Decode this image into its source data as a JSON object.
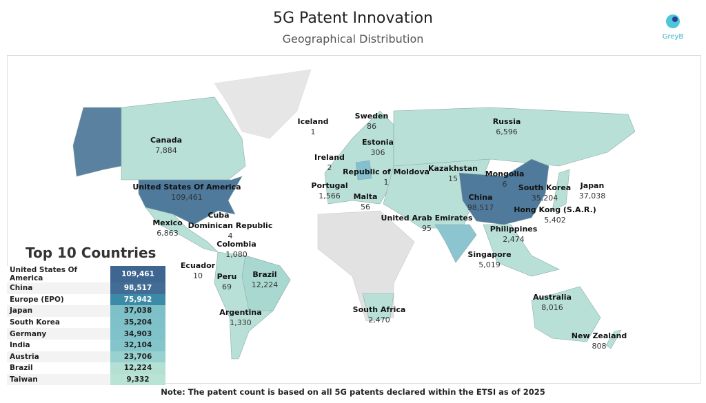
{
  "header": {
    "title": "5G Patent Innovation",
    "subtitle": "Geographical Distribution",
    "logo_text": "GreyB"
  },
  "colors": {
    "dark": "#4f7a9c",
    "mid": "#3a8fa8",
    "light": "#b9e0d6",
    "india": "#8cc5cf",
    "germany": "#84c0d0",
    "no_data": "#e2e2e2"
  },
  "map_labels": [
    {
      "name": "Iceland",
      "value": "1"
    },
    {
      "name": "Sweden",
      "value": "86"
    },
    {
      "name": "Estonia",
      "value": "306"
    },
    {
      "name": "Ireland",
      "value": "2"
    },
    {
      "name": "Republic of Moldova",
      "value": "1"
    },
    {
      "name": "Kazakhstan",
      "value": "15"
    },
    {
      "name": "Portugal",
      "value": "1,566"
    },
    {
      "name": "Malta",
      "value": "56"
    },
    {
      "name": "United Arab Emirates",
      "value": "95"
    },
    {
      "name": "Russia",
      "value": "6,596"
    },
    {
      "name": "Canada",
      "value": "7,884"
    },
    {
      "name": "United States Of America",
      "value": "109,461"
    },
    {
      "name": "Mexico",
      "value": "6,863"
    },
    {
      "name": "Cuba",
      "value": ""
    },
    {
      "name": "Dominican Republic",
      "value": "4"
    },
    {
      "name": "Colombia",
      "value": "1,080"
    },
    {
      "name": "Ecuador",
      "value": "10"
    },
    {
      "name": "Peru",
      "value": "69"
    },
    {
      "name": "Brazil",
      "value": "12,224"
    },
    {
      "name": "Argentina",
      "value": "1,330"
    },
    {
      "name": "South Africa",
      "value": "2,470"
    },
    {
      "name": "China",
      "value": "98,517"
    },
    {
      "name": "Mongolia",
      "value": "6"
    },
    {
      "name": "South Korea",
      "value": "35,204"
    },
    {
      "name": "Japan",
      "value": "37,038"
    },
    {
      "name": "Hong Kong (S.A.R.)",
      "value": "5,402"
    },
    {
      "name": "Philippines",
      "value": "2,474"
    },
    {
      "name": "Singapore",
      "value": "5,019"
    },
    {
      "name": "Australia",
      "value": "8,016"
    },
    {
      "name": "New Zealand",
      "value": "808"
    }
  ],
  "top10": {
    "title": "Top 10 Countries",
    "rows": [
      {
        "country": "United States Of America",
        "value": "109,461",
        "color": "#3f6690"
      },
      {
        "country": "China",
        "value": "98,517",
        "color": "#426c94"
      },
      {
        "country": "Europe (EPO)",
        "value": "75,942",
        "color": "#3a8aa8"
      },
      {
        "country": "Japan",
        "value": "37,038",
        "color": "#7dc0c8"
      },
      {
        "country": "South Korea",
        "value": "35,204",
        "color": "#7fc1c9"
      },
      {
        "country": "Germany",
        "value": "34,903",
        "color": "#80c2ca"
      },
      {
        "country": "India",
        "value": "32,104",
        "color": "#84c5cb"
      },
      {
        "country": "Austria",
        "value": "23,706",
        "color": "#98d1cf"
      },
      {
        "country": "Brazil",
        "value": "12,224",
        "color": "#b3e0d3"
      },
      {
        "country": "Taiwan",
        "value": "9,332",
        "color": "#b9e4d5"
      }
    ]
  },
  "note": "Note: The patent count is based on all 5G patents declared within the ETSI as of 2025"
}
